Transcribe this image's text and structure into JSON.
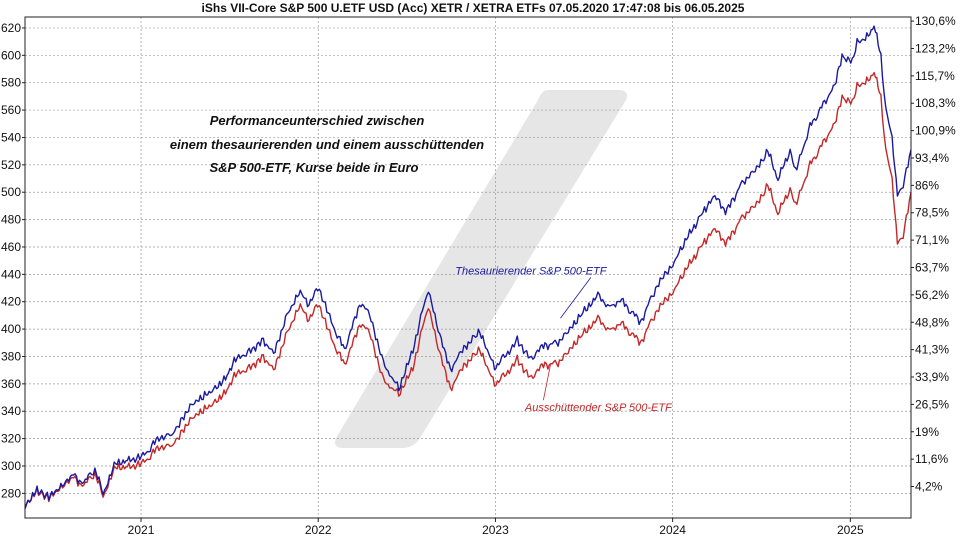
{
  "chart_data": {
    "type": "line",
    "title": "iShs VII-Core S&P 500 U.ETF USD (Acc) XETR / XETRA ETFs 07.05.2020 17:47:08 bis 06.05.2025",
    "annotation_lines": [
      "Performanceunterschied zwischen",
      "einem thesaurierenden und einem ausschüttenden",
      "S&P 500-ETF, Kurse beide in Euro"
    ],
    "x_range": [
      "2020-05-07",
      "2025-05-06"
    ],
    "ylim": [
      262,
      628
    ],
    "y_ticks": [
      280,
      300,
      320,
      340,
      360,
      380,
      400,
      420,
      440,
      460,
      480,
      500,
      520,
      540,
      560,
      580,
      600,
      620
    ],
    "x_tick_labels": [
      "2021",
      "2022",
      "2023",
      "2024",
      "2025"
    ],
    "x_ticks": [
      "2021-01-01",
      "2022-01-01",
      "2023-01-01",
      "2024-01-01",
      "2025-01-01"
    ],
    "right_axis": {
      "labels": [
        "4,2%",
        "11,6%",
        "19%",
        "26,5%",
        "33,9%",
        "41,3%",
        "48,8%",
        "56,2%",
        "63,7%",
        "71,1%",
        "78,5%",
        "86%",
        "93,4%",
        "100,9%",
        "108,3%",
        "115,7%",
        "123,2%",
        "130,6%"
      ],
      "values_at": [
        285,
        305,
        325,
        345,
        365,
        385,
        405,
        425,
        445,
        465,
        485,
        505,
        525,
        545,
        565,
        585,
        605,
        625
      ]
    },
    "grid": true,
    "series": [
      {
        "name": "Thesaurierender S&P 500-ETF",
        "color": "#1a1aa0",
        "points": [
          [
            "2020-05-07",
            270
          ],
          [
            "2020-06-01",
            283
          ],
          [
            "2020-06-25",
            277
          ],
          [
            "2020-07-20",
            286
          ],
          [
            "2020-08-15",
            293
          ],
          [
            "2020-09-05",
            287
          ],
          [
            "2020-09-28",
            298
          ],
          [
            "2020-10-15",
            280
          ],
          [
            "2020-11-10",
            302
          ],
          [
            "2020-12-10",
            305
          ],
          [
            "2021-01-05",
            307
          ],
          [
            "2021-02-10",
            322
          ],
          [
            "2021-03-05",
            322
          ],
          [
            "2021-04-15",
            345
          ],
          [
            "2021-05-15",
            352
          ],
          [
            "2021-06-15",
            360
          ],
          [
            "2021-07-15",
            378
          ],
          [
            "2021-08-15",
            384
          ],
          [
            "2021-09-10",
            392
          ],
          [
            "2021-10-01",
            382
          ],
          [
            "2021-11-01",
            413
          ],
          [
            "2021-11-25",
            428
          ],
          [
            "2021-12-10",
            418
          ],
          [
            "2022-01-03",
            430
          ],
          [
            "2022-01-28",
            405
          ],
          [
            "2022-02-24",
            385
          ],
          [
            "2022-03-30",
            420
          ],
          [
            "2022-04-20",
            408
          ],
          [
            "2022-05-12",
            378
          ],
          [
            "2022-06-16",
            356
          ],
          [
            "2022-07-15",
            385
          ],
          [
            "2022-08-16",
            430
          ],
          [
            "2022-09-05",
            400
          ],
          [
            "2022-09-30",
            370
          ],
          [
            "2022-10-25",
            385
          ],
          [
            "2022-11-30",
            398
          ],
          [
            "2022-12-30",
            372
          ],
          [
            "2023-01-20",
            380
          ],
          [
            "2023-02-15",
            392
          ],
          [
            "2023-03-13",
            378
          ],
          [
            "2023-04-10",
            388
          ],
          [
            "2023-05-10",
            390
          ],
          [
            "2023-06-15",
            405
          ],
          [
            "2023-07-31",
            425
          ],
          [
            "2023-08-20",
            415
          ],
          [
            "2023-09-15",
            422
          ],
          [
            "2023-10-27",
            405
          ],
          [
            "2023-11-30",
            432
          ],
          [
            "2023-12-29",
            445
          ],
          [
            "2024-02-05",
            470
          ],
          [
            "2024-03-28",
            498
          ],
          [
            "2024-04-19",
            485
          ],
          [
            "2024-05-20",
            505
          ],
          [
            "2024-06-28",
            520
          ],
          [
            "2024-07-15",
            530
          ],
          [
            "2024-08-05",
            510
          ],
          [
            "2024-08-30",
            530
          ],
          [
            "2024-09-10",
            515
          ],
          [
            "2024-10-10",
            548
          ],
          [
            "2024-11-30",
            578
          ],
          [
            "2024-12-15",
            600
          ],
          [
            "2025-01-05",
            595
          ],
          [
            "2025-01-15",
            610
          ],
          [
            "2025-02-01",
            612
          ],
          [
            "2025-02-19",
            622
          ],
          [
            "2025-03-05",
            600
          ],
          [
            "2025-03-15",
            560
          ],
          [
            "2025-03-28",
            540
          ],
          [
            "2025-04-08",
            498
          ],
          [
            "2025-04-20",
            505
          ],
          [
            "2025-05-06",
            531
          ]
        ]
      },
      {
        "name": "Ausschüttender S&P 500-ETF",
        "color": "#c42828",
        "points": [
          [
            "2020-05-07",
            270
          ],
          [
            "2020-06-01",
            282
          ],
          [
            "2020-06-25",
            276
          ],
          [
            "2020-07-20",
            285
          ],
          [
            "2020-08-15",
            291
          ],
          [
            "2020-09-05",
            285
          ],
          [
            "2020-09-28",
            295
          ],
          [
            "2020-10-15",
            278
          ],
          [
            "2020-11-10",
            299
          ],
          [
            "2020-12-10",
            300
          ],
          [
            "2021-01-05",
            302
          ],
          [
            "2021-02-10",
            315
          ],
          [
            "2021-03-05",
            314
          ],
          [
            "2021-04-15",
            335
          ],
          [
            "2021-05-15",
            342
          ],
          [
            "2021-06-15",
            350
          ],
          [
            "2021-07-15",
            367
          ],
          [
            "2021-08-15",
            372
          ],
          [
            "2021-09-10",
            380
          ],
          [
            "2021-10-01",
            370
          ],
          [
            "2021-11-01",
            400
          ],
          [
            "2021-11-25",
            418
          ],
          [
            "2021-12-10",
            407
          ],
          [
            "2022-01-03",
            418
          ],
          [
            "2022-01-28",
            393
          ],
          [
            "2022-02-24",
            374
          ],
          [
            "2022-03-30",
            405
          ],
          [
            "2022-04-20",
            395
          ],
          [
            "2022-05-12",
            365
          ],
          [
            "2022-06-16",
            352
          ],
          [
            "2022-07-15",
            372
          ],
          [
            "2022-08-16",
            418
          ],
          [
            "2022-09-05",
            387
          ],
          [
            "2022-09-30",
            356
          ],
          [
            "2022-10-25",
            372
          ],
          [
            "2022-11-30",
            385
          ],
          [
            "2022-12-30",
            360
          ],
          [
            "2023-01-20",
            366
          ],
          [
            "2023-02-15",
            378
          ],
          [
            "2023-03-13",
            364
          ],
          [
            "2023-04-10",
            374
          ],
          [
            "2023-05-10",
            375
          ],
          [
            "2023-06-15",
            390
          ],
          [
            "2023-07-31",
            408
          ],
          [
            "2023-08-20",
            398
          ],
          [
            "2023-09-15",
            405
          ],
          [
            "2023-10-27",
            390
          ],
          [
            "2023-11-30",
            414
          ],
          [
            "2023-12-29",
            425
          ],
          [
            "2024-02-05",
            448
          ],
          [
            "2024-03-28",
            474
          ],
          [
            "2024-04-19",
            462
          ],
          [
            "2024-05-20",
            480
          ],
          [
            "2024-06-28",
            494
          ],
          [
            "2024-07-15",
            505
          ],
          [
            "2024-08-05",
            485
          ],
          [
            "2024-08-30",
            502
          ],
          [
            "2024-09-10",
            490
          ],
          [
            "2024-10-10",
            520
          ],
          [
            "2024-11-30",
            550
          ],
          [
            "2024-12-15",
            570
          ],
          [
            "2025-01-05",
            565
          ],
          [
            "2025-01-15",
            578
          ],
          [
            "2025-02-01",
            580
          ],
          [
            "2025-02-19",
            588
          ],
          [
            "2025-03-05",
            570
          ],
          [
            "2025-03-15",
            530
          ],
          [
            "2025-03-28",
            510
          ],
          [
            "2025-04-08",
            463
          ],
          [
            "2025-04-20",
            468
          ],
          [
            "2025-05-06",
            500
          ]
        ]
      }
    ],
    "series_labels": [
      {
        "text": "Thesaurierender S&P 500-ETF",
        "anchor": [
          "2023-03-15",
          440
        ],
        "target": [
          "2023-05-15",
          408
        ]
      },
      {
        "text": "Ausschüttender S&P 500-ETF",
        "anchor": [
          "2023-08-01",
          340
        ],
        "target": [
          "2023-04-25",
          375
        ]
      }
    ],
    "watermark_color": "#e6e6e6"
  }
}
